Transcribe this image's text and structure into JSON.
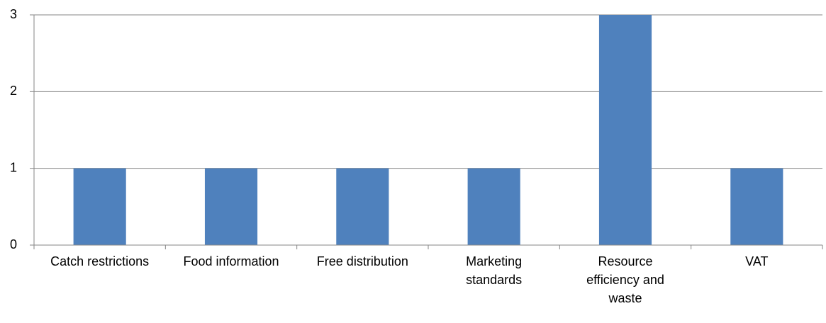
{
  "chart_data": {
    "type": "bar",
    "categories": [
      "Catch restrictions",
      "Food information",
      "Free distribution",
      "Marketing standards",
      "Resource efficiency and waste",
      "VAT"
    ],
    "values": [
      1,
      1,
      1,
      1,
      3,
      1
    ],
    "color": "#4f81bd",
    "ylim": [
      0,
      3
    ],
    "yticks": [
      0,
      1,
      2,
      3
    ],
    "grid": true
  }
}
